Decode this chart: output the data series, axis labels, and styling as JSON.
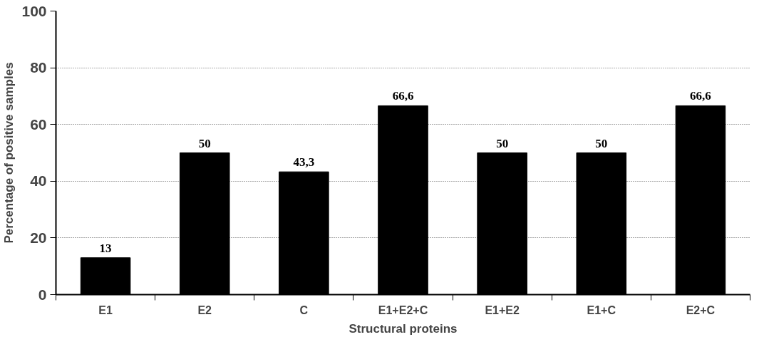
{
  "chart_data": {
    "type": "bar",
    "xlabel": "Structural proteins",
    "ylabel": "Percentage of positive samples",
    "categories": [
      "E1",
      "E2",
      "C",
      "E1+E2+C",
      "E1+E2",
      "E1+C",
      "E2+C"
    ],
    "values": [
      13,
      50,
      43.3,
      66.6,
      50,
      50,
      66.6
    ],
    "value_labels": [
      "13",
      "50",
      "43,3",
      "66,6",
      "50",
      "50",
      "66,6"
    ],
    "color": "#000000",
    "ylim": [
      0,
      100
    ],
    "yticks": [
      0,
      20,
      40,
      60,
      80,
      100
    ],
    "grid": "y"
  }
}
